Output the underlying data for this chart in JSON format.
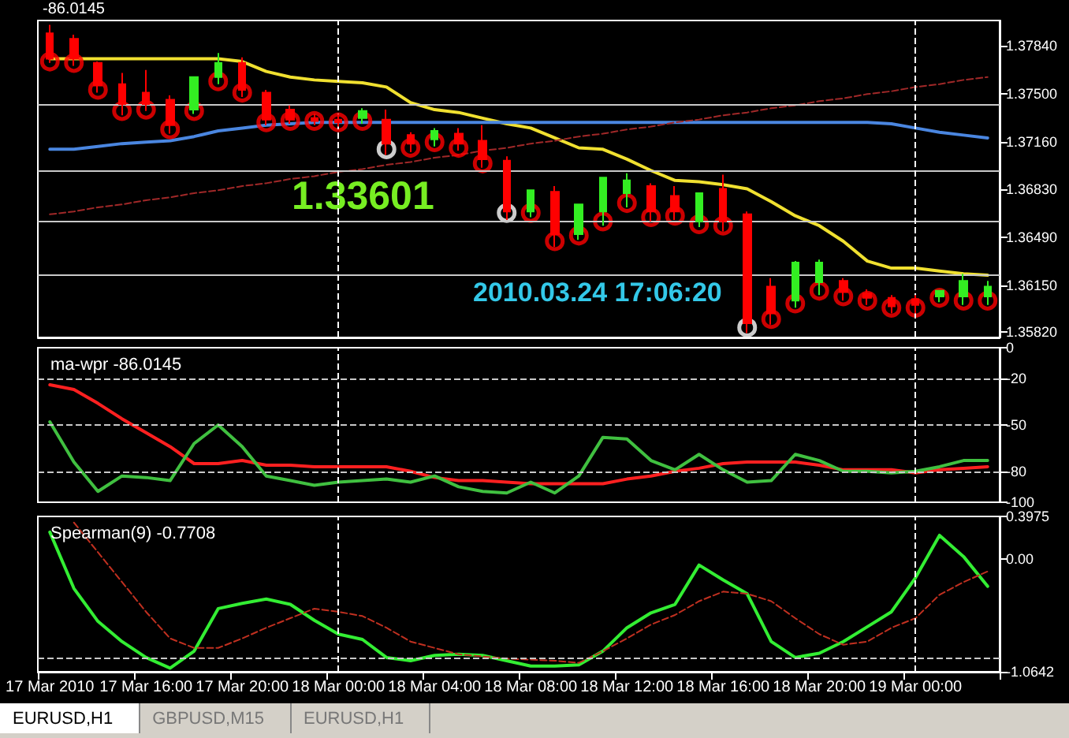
{
  "chart_data": [
    {
      "type": "candlestick",
      "categories": [
        "17 Mar 2010",
        null,
        null,
        null,
        "17 Mar 16:00",
        null,
        null,
        null,
        "17 Mar 20:00",
        null,
        null,
        null,
        "18 Mar 00:00",
        null,
        null,
        null,
        "18 Mar 04:00",
        null,
        null,
        null,
        "18 Mar 08:00",
        null,
        null,
        null,
        "18 Mar 12:00",
        null,
        null,
        null,
        "18 Mar 16:00",
        null,
        null,
        null,
        "18 Mar 20:00",
        null,
        null,
        null,
        "19 Mar 00:00",
        null,
        null,
        null
      ],
      "ohlc": [
        [
          1.3793,
          1.3799,
          1.3772,
          1.3775
        ],
        [
          1.3789,
          1.3792,
          1.377,
          1.3775
        ],
        [
          1.3772,
          1.3773,
          1.3751,
          1.3756
        ],
        [
          1.3757,
          1.3765,
          1.3735,
          1.3743
        ],
        [
          1.3751,
          1.3767,
          1.3738,
          1.3743
        ],
        [
          1.3746,
          1.3749,
          1.3722,
          1.3728
        ],
        [
          1.3739,
          1.3762,
          1.3736,
          1.3762
        ],
        [
          1.3762,
          1.3779,
          1.3757,
          1.3772
        ],
        [
          1.3772,
          1.3776,
          1.3748,
          1.3753
        ],
        [
          1.3751,
          1.3753,
          1.3728,
          1.3732
        ],
        [
          1.3739,
          1.3742,
          1.3729,
          1.3732
        ],
        [
          1.3733,
          1.3736,
          1.3728,
          1.3731
        ],
        [
          1.3732,
          1.3736,
          1.3727,
          1.373
        ],
        [
          1.3733,
          1.374,
          1.3729,
          1.3738
        ],
        [
          1.3732,
          1.3739,
          1.3707,
          1.3715
        ],
        [
          1.3721,
          1.3723,
          1.3709,
          1.3715
        ],
        [
          1.3718,
          1.3726,
          1.3713,
          1.3724
        ],
        [
          1.3722,
          1.3726,
          1.371,
          1.3715
        ],
        [
          1.3717,
          1.3728,
          1.3698,
          1.3704
        ],
        [
          1.3703,
          1.3706,
          1.3661,
          1.3667
        ],
        [
          1.3667,
          1.3682,
          1.3663,
          1.3682
        ],
        [
          1.3681,
          1.3685,
          1.3642,
          1.3651
        ],
        [
          1.3651,
          1.3672,
          1.3647,
          1.3672
        ],
        [
          1.3667,
          1.3691,
          1.3657,
          1.3691
        ],
        [
          1.368,
          1.3694,
          1.367,
          1.3689
        ],
        [
          1.3685,
          1.3687,
          1.366,
          1.3667
        ],
        [
          1.3678,
          1.3685,
          1.3661,
          1.3667
        ],
        [
          1.366,
          1.368,
          1.3656,
          1.368
        ],
        [
          1.3683,
          1.3693,
          1.3653,
          1.366
        ],
        [
          1.3665,
          1.3667,
          1.3581,
          1.3588
        ],
        [
          1.3614,
          1.362,
          1.3587,
          1.3595
        ],
        [
          1.3604,
          1.3632,
          1.3599,
          1.3631
        ],
        [
          1.3617,
          1.3633,
          1.3608,
          1.3631
        ],
        [
          1.3618,
          1.362,
          1.3604,
          1.361
        ],
        [
          1.3609,
          1.3612,
          1.3601,
          1.3606
        ],
        [
          1.3606,
          1.3608,
          1.3595,
          1.36
        ],
        [
          1.3605,
          1.3608,
          1.3595,
          1.3601
        ],
        [
          1.3607,
          1.3611,
          1.3603,
          1.3611
        ],
        [
          1.3607,
          1.3623,
          1.3601,
          1.3618
        ],
        [
          1.3607,
          1.3618,
          1.3601,
          1.3614
        ]
      ],
      "colors": [
        "#ff0000",
        "#ff0000",
        "#ff0000",
        "#ff0000",
        "#ff0000",
        "#ff0000",
        "#33ee22",
        "#33ee22",
        "#ff0000",
        "#ff0000",
        "#ff0000",
        "#ff0000",
        "#ff0000",
        "#33ee22",
        "#ff0000",
        "#ff0000",
        "#33ee22",
        "#ff0000",
        "#ff0000",
        "#ff0000",
        "#33ee22",
        "#ff0000",
        "#33ee22",
        "#33ee22",
        "#33ee22",
        "#ff0000",
        "#ff0000",
        "#33ee22",
        "#ff0000",
        "#ff0000",
        "#ff0000",
        "#33ee22",
        "#33ee22",
        "#ff0000",
        "#ff0000",
        "#ff0000",
        "#ff0000",
        "#33ee22",
        "#33ee22",
        "#33ee22"
      ],
      "series": [
        {
          "type": "line",
          "color": "#f0e030",
          "values": [
            1.3775,
            1.3775,
            1.3775,
            1.3775,
            1.3775,
            1.3775,
            1.3775,
            1.3775,
            1.3773,
            1.3766,
            1.3762,
            1.376,
            1.3759,
            1.3758,
            1.3755,
            1.3744,
            1.3739,
            1.3737,
            1.3733,
            1.3729,
            1.3726,
            1.3719,
            1.3712,
            1.3711,
            1.3704,
            1.3696,
            1.3689,
            1.3688,
            1.3686,
            1.3683,
            1.3674,
            1.3664,
            1.3657,
            1.3646,
            1.3632,
            1.3627,
            1.3627,
            1.3625,
            1.3623,
            1.3622
          ]
        },
        {
          "type": "line",
          "color": "#4a86e0",
          "values": [
            1.3711,
            1.3711,
            1.3713,
            1.3715,
            1.3716,
            1.3717,
            1.372,
            1.3724,
            1.3726,
            1.3728,
            1.3729,
            1.373,
            1.373,
            1.373,
            1.373,
            1.373,
            1.373,
            1.373,
            1.373,
            1.373,
            1.373,
            1.373,
            1.373,
            1.373,
            1.373,
            1.373,
            1.373,
            1.373,
            1.373,
            1.373,
            1.373,
            1.373,
            1.373,
            1.373,
            1.373,
            1.3729,
            1.3726,
            1.3723,
            1.3721,
            1.3719
          ]
        },
        {
          "type": "line",
          "color": "#a02828",
          "line_style": "dashed",
          "values": [
            1.3665,
            1.3667,
            1.367,
            1.3672,
            1.3675,
            1.3677,
            1.368,
            1.3682,
            1.3685,
            1.3687,
            1.369,
            1.3692,
            1.3695,
            1.3697,
            1.37,
            1.3702,
            1.3705,
            1.3707,
            1.371,
            1.3712,
            1.3715,
            1.3717,
            1.372,
            1.3722,
            1.3725,
            1.3727,
            1.373,
            1.3732,
            1.3735,
            1.3737,
            1.374,
            1.3742,
            1.3745,
            1.3747,
            1.375,
            1.3752,
            1.3755,
            1.3757,
            1.376,
            1.3762
          ]
        },
        {
          "type": "scatter",
          "color": "#ff0000",
          "marker": "circle",
          "values": [
            1.3773,
            1.3772,
            1.3753,
            1.3738,
            1.3739,
            1.3725,
            1.3738,
            1.3759,
            1.3751,
            1.373,
            1.3731,
            1.3731,
            1.373,
            1.3731,
            null,
            1.3712,
            1.3716,
            1.3712,
            1.3701,
            null,
            1.3666,
            1.3646,
            1.365,
            1.366,
            1.3673,
            1.3663,
            1.3664,
            1.3658,
            1.3657,
            null,
            1.3591,
            1.3602,
            1.3611,
            1.3607,
            1.3604,
            1.3599,
            1.3599,
            1.3606,
            1.3604,
            1.3604
          ]
        },
        {
          "type": "scatter",
          "color": "#ffffff",
          "marker": "circle",
          "values": [
            null,
            null,
            null,
            null,
            null,
            null,
            null,
            null,
            null,
            null,
            null,
            null,
            null,
            null,
            1.3711,
            null,
            null,
            null,
            null,
            1.3666,
            null,
            null,
            null,
            null,
            null,
            null,
            null,
            null,
            null,
            1.3585,
            null,
            null,
            null,
            null,
            null,
            null,
            null,
            null,
            null,
            null
          ]
        }
      ],
      "ylim": [
        1.3578,
        1.3802
      ],
      "yticks": [
        {
          "value": 1.3582,
          "label": "1.35820"
        },
        {
          "value": 1.3615,
          "label": "1.36150"
        },
        {
          "value": 1.3649,
          "label": "1.36490"
        },
        {
          "value": 1.3683,
          "label": "1.36830"
        },
        {
          "value": 1.3716,
          "label": "1.37160"
        },
        {
          "value": 1.375,
          "label": "1.37500"
        },
        {
          "value": 1.3784,
          "label": "1.37840"
        }
      ],
      "ref_lines": [
        {
          "axis": "y",
          "value": 1.3743,
          "color": "#c8c8c8"
        },
        {
          "axis": "y",
          "value": 1.3696,
          "color": "#c8c8c8"
        },
        {
          "axis": "y",
          "value": 1.366,
          "color": "#c8c8c8"
        },
        {
          "axis": "y",
          "value": 1.3622,
          "color": "#c8c8c8"
        },
        {
          "axis": "x",
          "value": "18 Mar 00:00",
          "color": "#ffffff",
          "line_style": "dashed"
        },
        {
          "axis": "x",
          "value": "19 Mar 00:00",
          "color": "#ffffff",
          "line_style": "dashed"
        }
      ],
      "annotations": [
        "-86.0145",
        "1.33601",
        "2010.03.24 17:06:20"
      ],
      "tick_labels": "y"
    },
    {
      "type": "line",
      "title": "ma-wpr -86.0145",
      "categories": [
        "17 Mar 2010",
        null,
        null,
        null,
        "17 Mar 16:00",
        null,
        null,
        null,
        "17 Mar 20:00",
        null,
        null,
        null,
        "18 Mar 00:00",
        null,
        null,
        null,
        "18 Mar 04:00",
        null,
        null,
        null,
        "18 Mar 08:00",
        null,
        null,
        null,
        "18 Mar 12:00",
        null,
        null,
        null,
        "18 Mar 16:00",
        null,
        null,
        null,
        "18 Mar 20:00",
        null,
        null,
        null,
        "19 Mar 00:00",
        null,
        null,
        null
      ],
      "series": [
        {
          "color": "#ff2020",
          "values": [
            -24,
            -27,
            -36,
            -46,
            -55,
            -64,
            -75,
            -75,
            -73,
            -76,
            -76,
            -77,
            -77,
            -77,
            -77,
            -80,
            -84,
            -86,
            -86,
            -87,
            -88,
            -88,
            -88,
            -88,
            -85,
            -83,
            -80,
            -78,
            -75,
            -74,
            -74,
            -74,
            -76,
            -79,
            -79,
            -79,
            -81,
            -79,
            -78,
            -77
          ]
        },
        {
          "color": "#40c040",
          "values": [
            -48,
            -74,
            -93,
            -83,
            -84,
            -86,
            -62,
            -50,
            -64,
            -83,
            -86,
            -89,
            -87,
            -86,
            -85,
            -87,
            -83,
            -90,
            -93,
            -94,
            -87,
            -94,
            -83,
            -58,
            -59,
            -73,
            -79,
            -69,
            -79,
            -87,
            -86,
            -69,
            -73,
            -80,
            -80,
            -81,
            -80,
            -77,
            -73,
            -73
          ]
        }
      ],
      "ylim": [
        -100,
        0
      ],
      "yticks": [
        0,
        -20,
        -50,
        -80,
        -100
      ],
      "ref_lines": [
        {
          "axis": "y",
          "value": -20,
          "color": "#c8c8c8",
          "line_style": "dashed"
        },
        {
          "axis": "y",
          "value": -50,
          "color": "#c8c8c8",
          "line_style": "dashed"
        },
        {
          "axis": "y",
          "value": -80,
          "color": "#c8c8c8",
          "line_style": "dashed"
        },
        {
          "axis": "x",
          "value": "18 Mar 00:00",
          "color": "#ffffff",
          "line_style": "dashed"
        },
        {
          "axis": "x",
          "value": "19 Mar 00:00",
          "color": "#ffffff",
          "line_style": "dashed"
        }
      ],
      "tick_labels": "y"
    },
    {
      "type": "line",
      "title": "Spearman(9) -0.7708",
      "categories": [
        "17 Mar 2010",
        null,
        null,
        null,
        "17 Mar 16:00",
        null,
        null,
        null,
        "17 Mar 20:00",
        null,
        null,
        null,
        "18 Mar 00:00",
        null,
        null,
        null,
        "18 Mar 04:00",
        null,
        null,
        null,
        "18 Mar 08:00",
        null,
        null,
        null,
        "18 Mar 12:00",
        null,
        null,
        null,
        "18 Mar 16:00",
        null,
        null,
        null,
        "18 Mar 20:00",
        null,
        null,
        null,
        "19 Mar 00:00",
        null,
        null,
        null
      ],
      "series": [
        {
          "color": "#33ee33",
          "values": [
            0.25,
            -0.28,
            -0.59,
            -0.78,
            -0.93,
            -1.03,
            -0.87,
            -0.47,
            -0.42,
            -0.38,
            -0.43,
            -0.58,
            -0.71,
            -0.76,
            -0.93,
            -0.96,
            -0.91,
            -0.9,
            -0.91,
            -0.96,
            -1.01,
            -1.01,
            -1.0,
            -0.87,
            -0.65,
            -0.51,
            -0.43,
            -0.06,
            -0.2,
            -0.33,
            -0.78,
            -0.93,
            -0.89,
            -0.78,
            -0.64,
            -0.5,
            -0.18,
            0.22,
            0.02,
            -0.26
          ]
        },
        {
          "color": "#c03020",
          "line_style": "dashed",
          "values": [
            null,
            0.34,
            0.06,
            -0.22,
            -0.5,
            -0.75,
            -0.84,
            -0.84,
            -0.75,
            -0.65,
            -0.56,
            -0.47,
            -0.5,
            -0.54,
            -0.65,
            -0.78,
            -0.84,
            -0.9,
            -0.92,
            -0.94,
            -0.95,
            -0.96,
            -0.98,
            -0.87,
            -0.75,
            -0.62,
            -0.53,
            -0.4,
            -0.31,
            -0.33,
            -0.4,
            -0.56,
            -0.71,
            -0.81,
            -0.78,
            -0.65,
            -0.56,
            -0.34,
            -0.22,
            -0.12
          ]
        }
      ],
      "ylim": [
        -1.0642,
        0.3975
      ],
      "yticks": [
        {
          "value": 0.3975,
          "label": "0.3975"
        },
        {
          "value": 0,
          "label": "0.00"
        },
        {
          "value": -1.0642,
          "label": "-1.0642"
        }
      ],
      "ref_lines": [
        {
          "axis": "y",
          "value": -0.93,
          "color": "#c8c8c8",
          "line_style": "dashed"
        },
        {
          "axis": "x",
          "value": "18 Mar 00:00",
          "color": "#ffffff",
          "line_style": "dashed"
        },
        {
          "axis": "x",
          "value": "19 Mar 00:00",
          "color": "#ffffff",
          "line_style": "dashed"
        }
      ],
      "annotations": [
        "EURUSD,H1",
        "GBPUSD,M15",
        "EURUSD,H1"
      ]
    }
  ]
}
